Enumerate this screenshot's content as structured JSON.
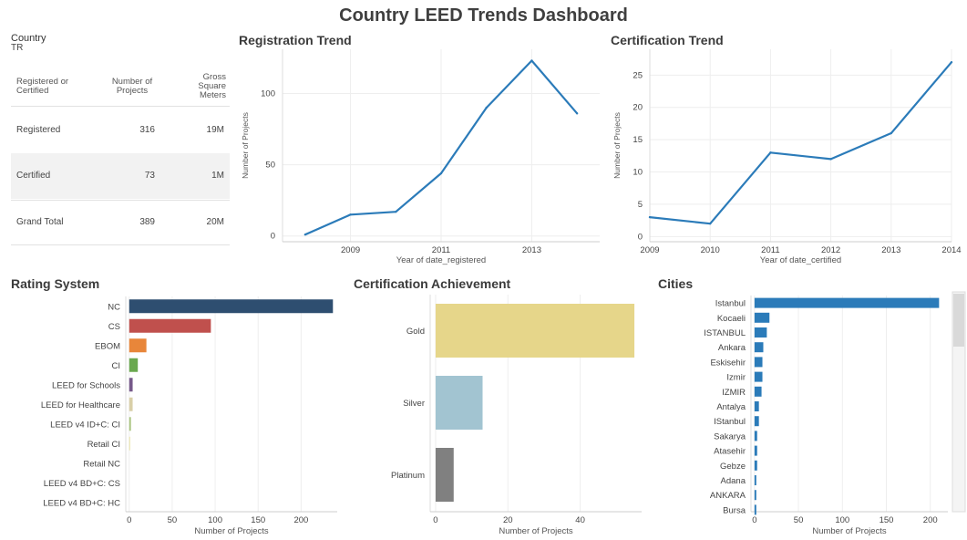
{
  "title": "Country LEED Trends Dashboard",
  "filter": {
    "label": "Country",
    "value": "TR"
  },
  "summary_table": {
    "headers": [
      "Registered or Certified",
      "Number of Projects",
      "Gross Square Meters"
    ],
    "rows": [
      {
        "label": "Registered",
        "projects": "316",
        "gsm": "19M"
      },
      {
        "label": "Certified",
        "projects": "73",
        "gsm": "1M"
      },
      {
        "label": "Grand Total",
        "projects": "389",
        "gsm": "20M"
      }
    ]
  },
  "sections": {
    "registration": "Registration Trend",
    "certification": "Certification Trend",
    "rating": "Rating System",
    "achievement": "Certification Achievement",
    "cities": "Cities"
  },
  "chart_data": [
    {
      "id": "registration",
      "type": "line",
      "title": "Registration Trend",
      "xlabel": "Year of date_registered",
      "ylabel": "Number of Projects",
      "x": [
        2008,
        2009,
        2010,
        2011,
        2012,
        2013,
        2014
      ],
      "y": [
        1,
        15,
        17,
        44,
        90,
        123,
        86
      ],
      "xticks": [
        2009,
        2011,
        2013
      ],
      "yticks": [
        0,
        50,
        100
      ],
      "xlim": [
        2007.5,
        2014.5
      ],
      "ylim": [
        -4,
        131
      ],
      "color": "#2b7bb9",
      "grid": true
    },
    {
      "id": "certification",
      "type": "line",
      "title": "Certification Trend",
      "xlabel": "Year of date_certified",
      "ylabel": "Number of Projects",
      "x": [
        2009,
        2010,
        2011,
        2012,
        2013,
        2014
      ],
      "y": [
        3,
        2,
        13,
        12,
        16,
        27
      ],
      "xticks": [
        2009,
        2010,
        2011,
        2012,
        2013,
        2014
      ],
      "yticks": [
        0,
        5,
        10,
        15,
        20,
        25
      ],
      "xlim": [
        2009,
        2014
      ],
      "ylim": [
        -0.8,
        29
      ],
      "color": "#2b7bb9",
      "grid": true
    },
    {
      "id": "rating",
      "type": "bar",
      "title": "Rating System",
      "xlabel": "Number of Projects",
      "categories": [
        "NC",
        "CS",
        "EBOM",
        "CI",
        "LEED for Schools",
        "LEED for Healthcare",
        "LEED v4 ID+C: CI",
        "Retail CI",
        "Retail NC",
        "LEED v4 BD+C: CS",
        "LEED v4 BD+C: HC"
      ],
      "values": [
        237,
        95,
        20,
        10,
        4,
        4,
        2,
        1,
        0,
        0,
        0
      ],
      "colors": [
        "#2e4e70",
        "#c0504d",
        "#e8863a",
        "#6aa84f",
        "#76598a",
        "#d9cfa8",
        "#a9c47f",
        "#e8e0a0",
        "#cccccc",
        "#cccccc",
        "#cccccc"
      ],
      "xticks": [
        0,
        50,
        100,
        150,
        200
      ],
      "xlim": [
        -4,
        242
      ]
    },
    {
      "id": "achievement",
      "type": "bar",
      "title": "Certification Achievement",
      "xlabel": "Number of Projects",
      "categories": [
        "Gold",
        "Silver",
        "Platinum"
      ],
      "values": [
        55,
        13,
        5
      ],
      "colors": [
        "#e6d68a",
        "#a2c4d1",
        "#808080"
      ],
      "xticks": [
        0,
        20,
        40
      ],
      "xlim": [
        -1.5,
        57
      ]
    },
    {
      "id": "cities",
      "type": "bar",
      "title": "Cities",
      "xlabel": "Number of Projects",
      "categories": [
        "Istanbul",
        "Kocaeli",
        "ISTANBUL",
        "Ankara",
        "Eskisehir",
        "Izmir",
        "IZMIR",
        "Antalya",
        "IStanbul",
        "Sakarya",
        "Atasehir",
        "Gebze",
        "Adana",
        "ANKARA",
        "Bursa"
      ],
      "values": [
        210,
        17,
        14,
        10,
        9,
        9,
        8,
        5,
        5,
        3,
        3,
        3,
        2,
        2,
        2
      ],
      "color": "#2b7bb9",
      "xticks": [
        0,
        50,
        100,
        150,
        200
      ],
      "xlim": [
        -4,
        220
      ]
    }
  ]
}
